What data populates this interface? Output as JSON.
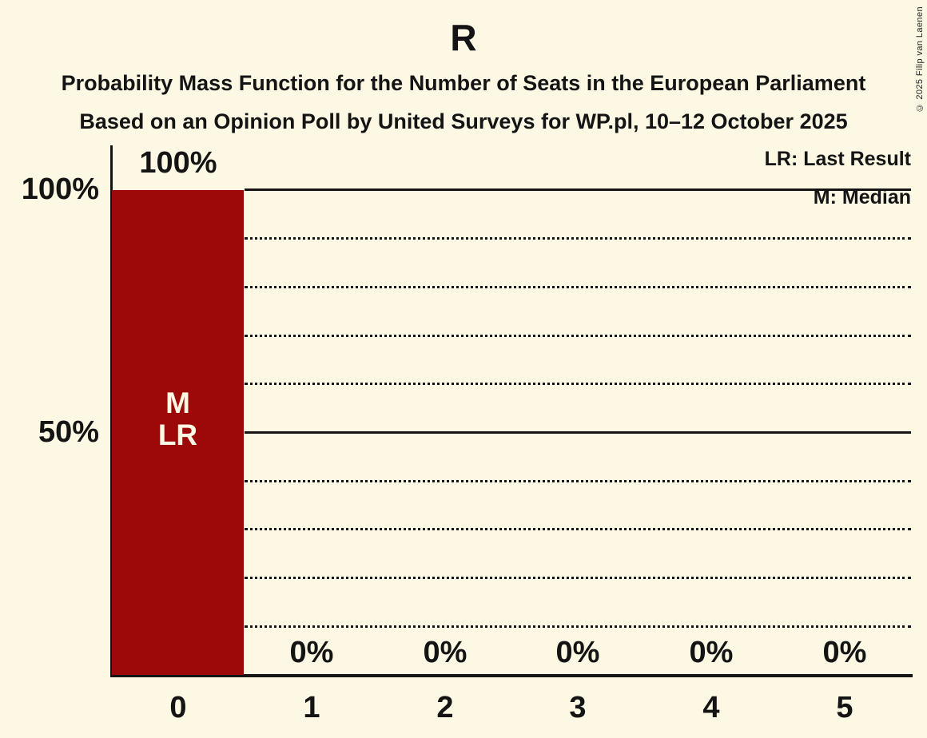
{
  "title": "R",
  "subtitles": [
    "Probability Mass Function for the Number of Seats in the European Parliament",
    "Based on an Opinion Poll by United Surveys for WP.pl, 10–12 October 2025"
  ],
  "copyright": "© 2025 Filip van Laenen",
  "legend": {
    "lr": "LR: Last Result",
    "m": "M: Median"
  },
  "y_axis": {
    "ticks": [
      "100%",
      "50%"
    ]
  },
  "colors": {
    "background": "#FCF8E3",
    "bar": "#9D0808",
    "text": "#141414",
    "bar_text": "#FCF8E3"
  },
  "chart_data": {
    "type": "bar",
    "title": "R",
    "categories": [
      "0",
      "1",
      "2",
      "3",
      "4",
      "5"
    ],
    "values": [
      100,
      0,
      0,
      0,
      0,
      0
    ],
    "value_labels": [
      "100%",
      "0%",
      "0%",
      "0%",
      "0%",
      "0%"
    ],
    "xlabel": "",
    "ylabel": "",
    "ylim": [
      0,
      100
    ],
    "ytick_labels": [
      "100%",
      "50%"
    ],
    "solid_gridlines_pct": [
      100,
      50
    ],
    "dotted_gridlines_pct": [
      90,
      80,
      70,
      60,
      40,
      30,
      20,
      10
    ],
    "legend_entries": [
      "LR: Last Result",
      "M: Median"
    ],
    "legend_position": "top-right",
    "annotated_bar_index": 0,
    "bar_annotations": {
      "median": "M",
      "last_result": "LR"
    },
    "bar_color": "#9D0808"
  }
}
